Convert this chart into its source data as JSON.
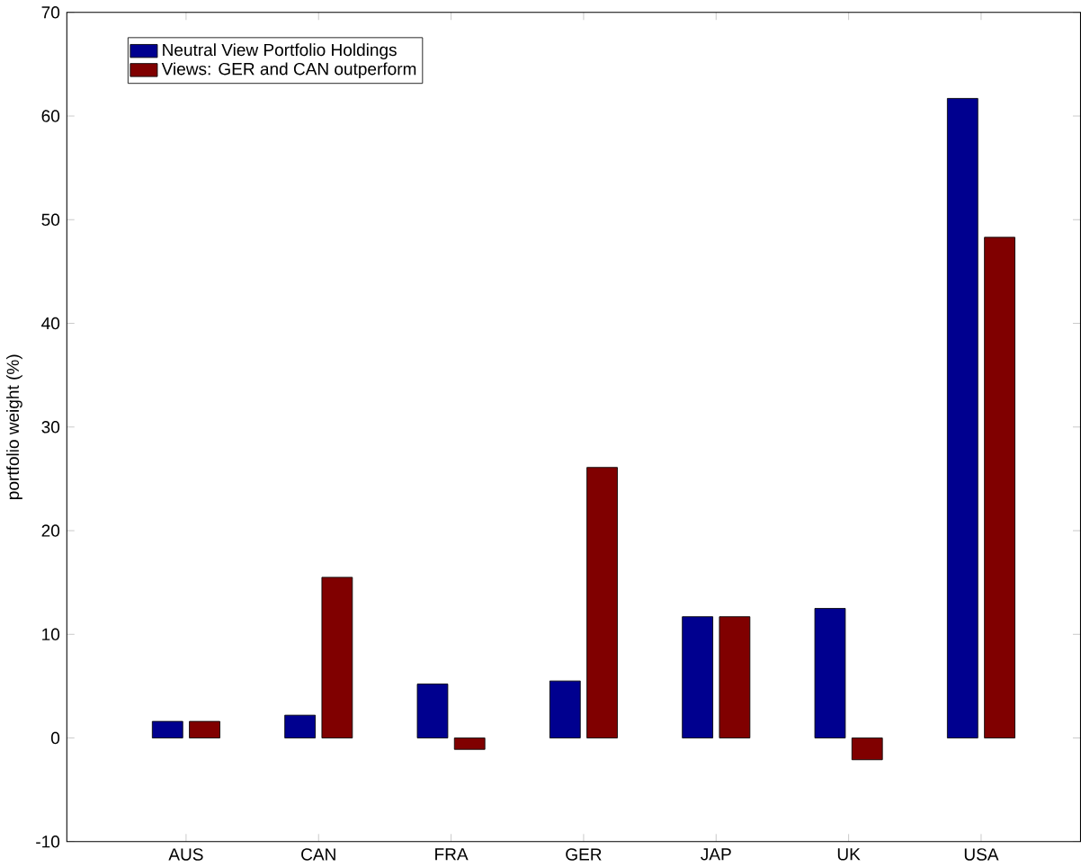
{
  "chart_data": {
    "type": "bar",
    "ylabel": "portfolio weight (%)",
    "categories": [
      "AUS",
      "CAN",
      "FRA",
      "GER",
      "JAP",
      "UK",
      "USA"
    ],
    "series": [
      {
        "name": "Neutral View Portfolio Holdings",
        "color": "#00008f",
        "values": [
          1.6,
          2.2,
          5.2,
          5.5,
          11.7,
          12.5,
          61.7
        ]
      },
      {
        "name": "Views: GER and CAN outperform",
        "color": "#800000",
        "values": [
          1.6,
          15.5,
          -1.1,
          26.1,
          11.7,
          -2.1,
          48.3
        ]
      }
    ],
    "ylim": [
      -10,
      70
    ],
    "yticks": [
      -10,
      0,
      10,
      20,
      30,
      40,
      50,
      60,
      70
    ],
    "legend": "top left",
    "grid": false
  }
}
